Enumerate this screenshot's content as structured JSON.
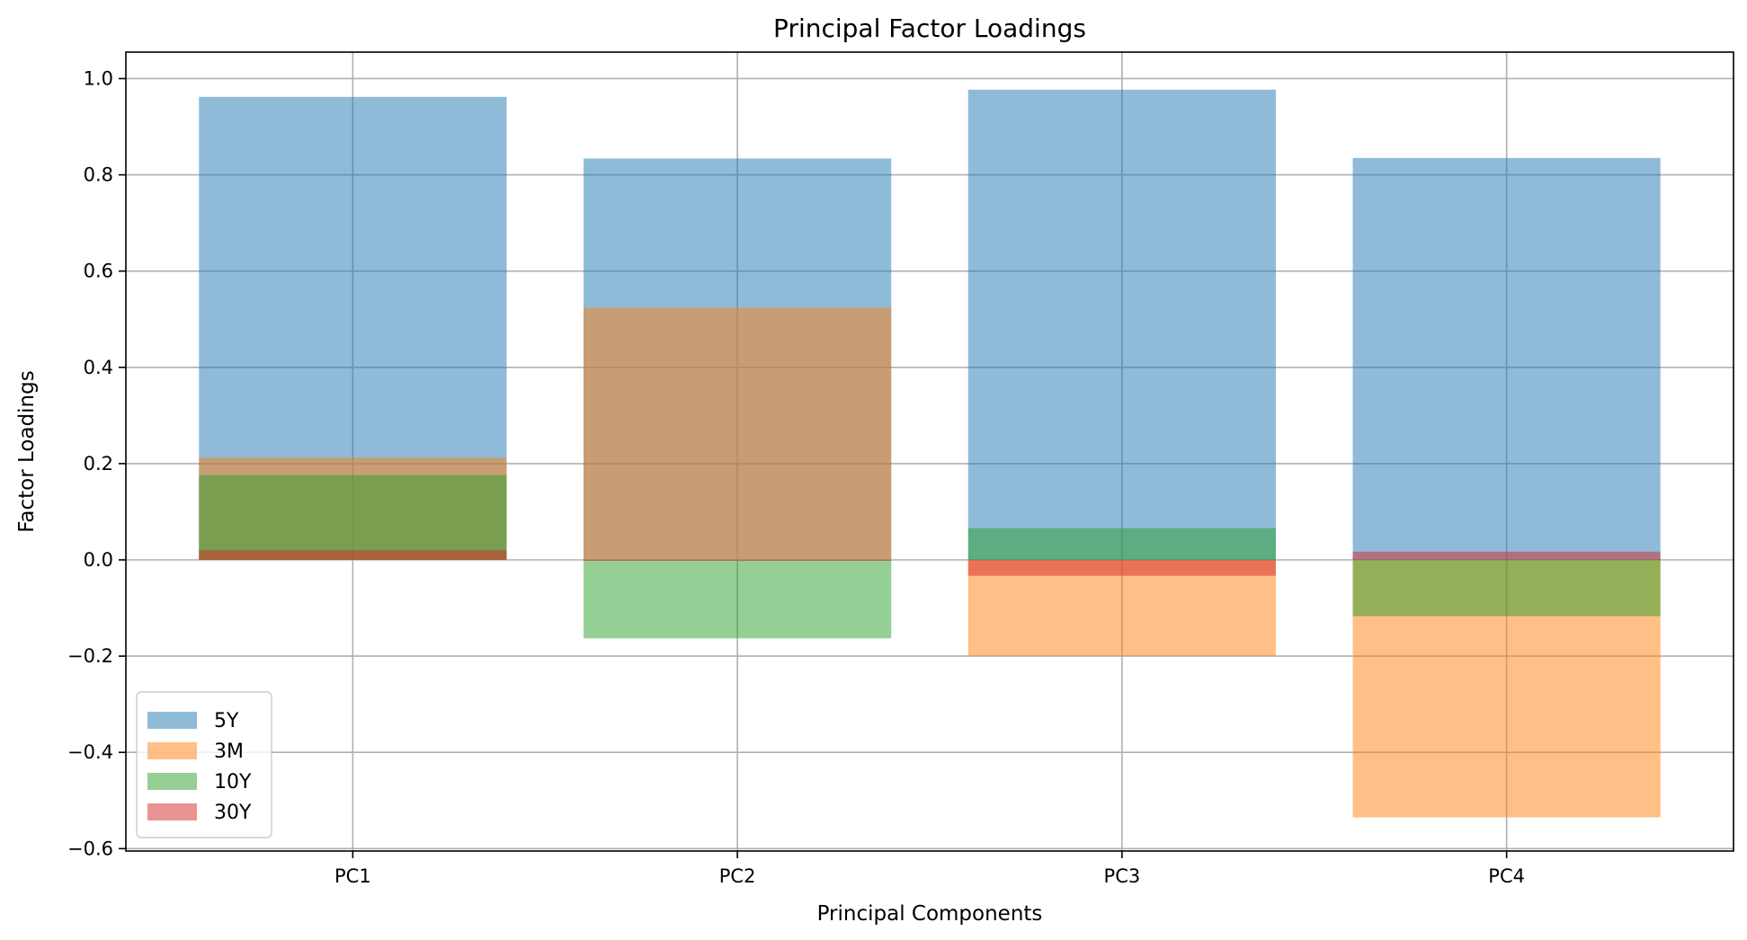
{
  "chart_data": {
    "type": "bar",
    "title": "Principal Factor Loadings",
    "xlabel": "Principal Components",
    "ylabel": "Factor Loadings",
    "categories": [
      "PC1",
      "PC2",
      "PC3",
      "PC4"
    ],
    "ylim": [
      -0.605,
      1.055
    ],
    "yticks": [
      -0.6,
      -0.4,
      -0.2,
      0.0,
      0.2,
      0.4,
      0.6,
      0.8,
      1.0
    ],
    "grid": true,
    "legend_position": "bottom-left",
    "series": [
      {
        "name": "5Y",
        "color": "#1f77b4",
        "values": [
          0.962,
          0.834,
          0.977,
          0.835
        ]
      },
      {
        "name": "3M",
        "color": "#ff7f0e",
        "values": [
          0.212,
          0.524,
          -0.2,
          -0.535
        ]
      },
      {
        "name": "10Y",
        "color": "#2ca02c",
        "values": [
          0.176,
          -0.163,
          0.066,
          -0.117
        ]
      },
      {
        "name": "30Y",
        "color": "#d62728",
        "values": [
          0.02,
          -0.002,
          -0.033,
          0.017
        ]
      }
    ]
  }
}
